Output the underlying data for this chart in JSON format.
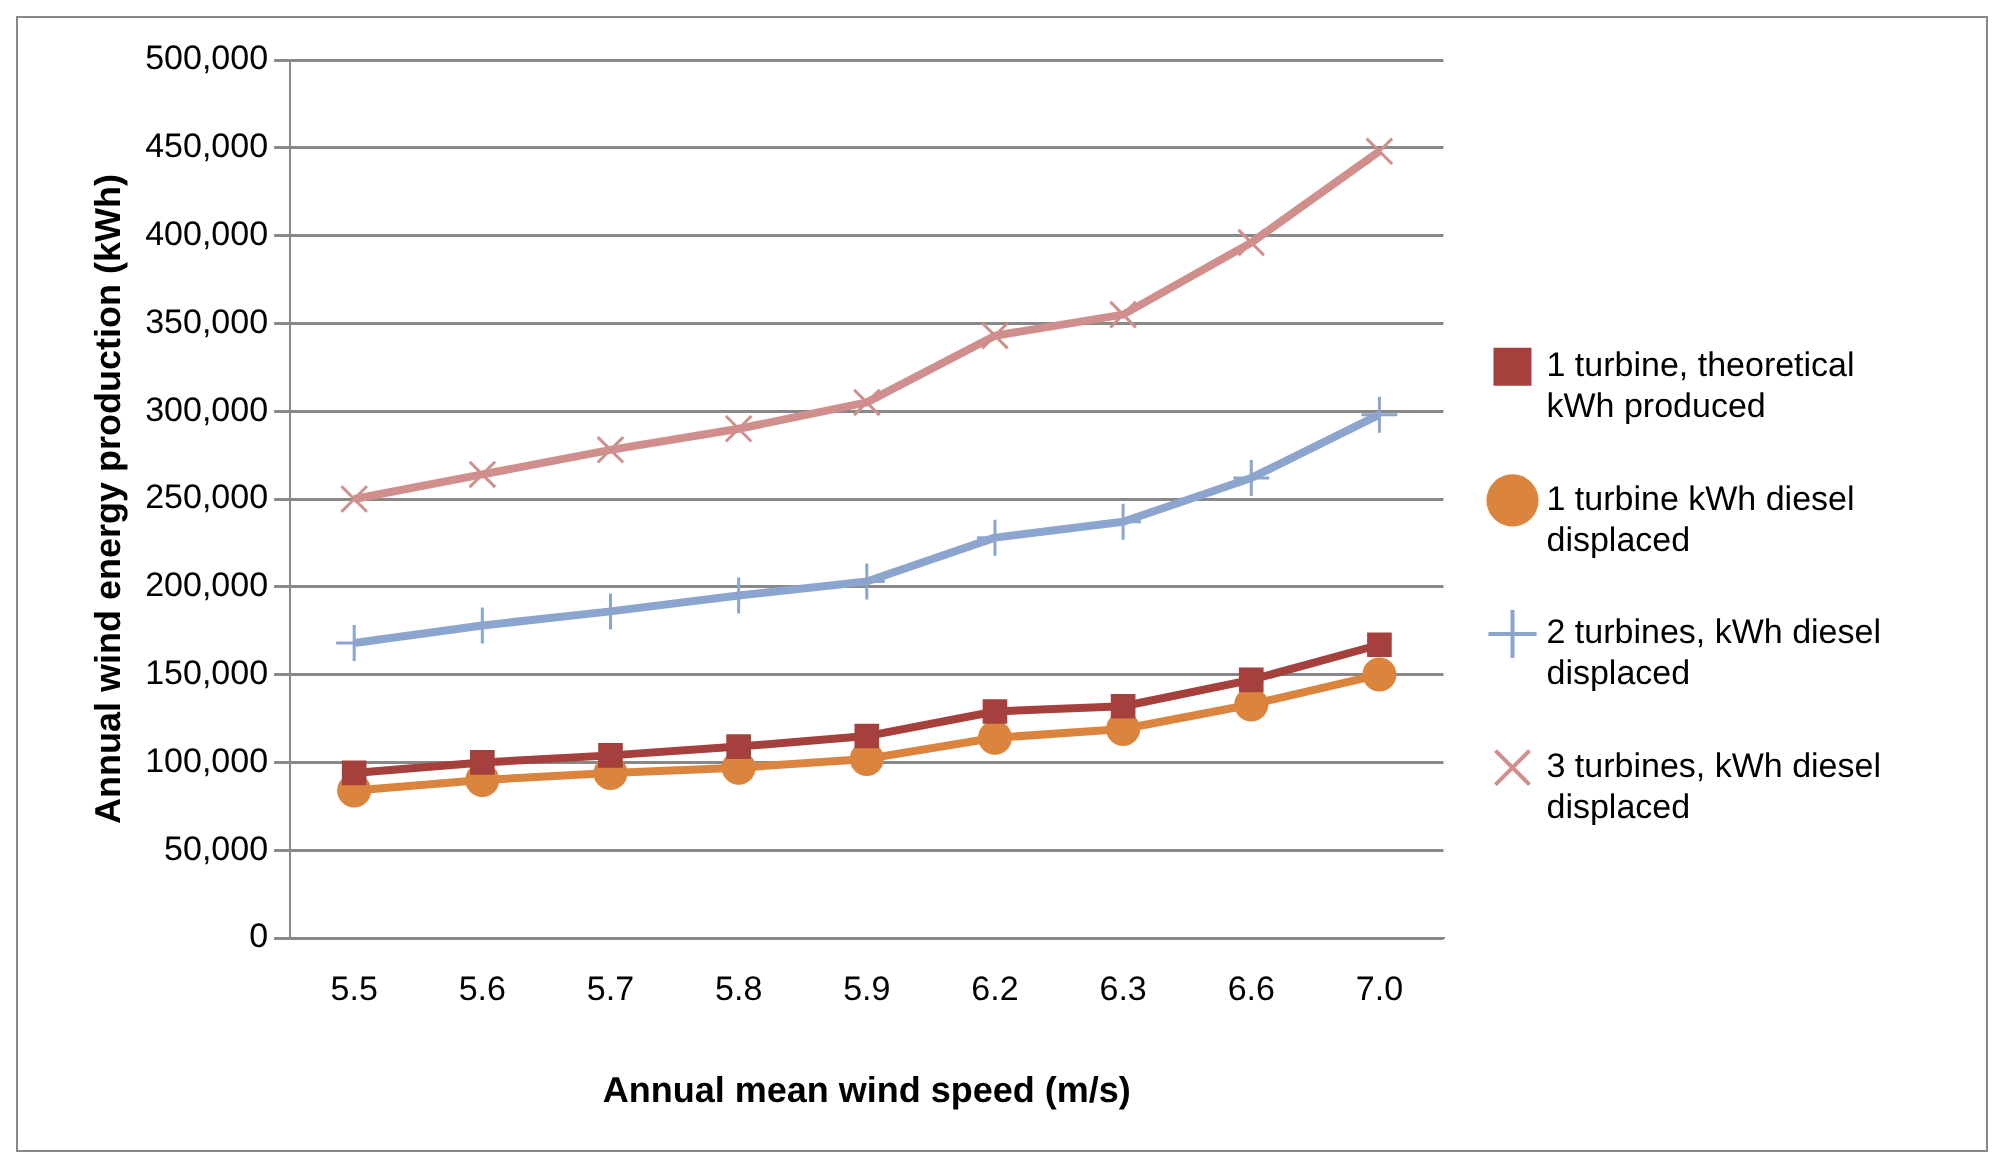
{
  "chart_data": {
    "type": "line",
    "xlabel": "Annual mean wind speed (m/s)",
    "ylabel": "Annual wind energy production (kWh)",
    "categories": [
      "5.5",
      "5.6",
      "5.7",
      "5.8",
      "5.9",
      "6.2",
      "6.3",
      "6.6",
      "7.0"
    ],
    "series": [
      {
        "name": "1 turbine, theoretical kWh produced",
        "color": "#a5403d",
        "marker": "square",
        "values": [
          94000,
          100000,
          104000,
          109000,
          115000,
          129000,
          132000,
          147000,
          167000
        ]
      },
      {
        "name": "1 turbine kWh diesel displaced",
        "color": "#db843d",
        "marker": "circle",
        "values": [
          84000,
          90000,
          94000,
          97000,
          102000,
          114000,
          119000,
          133000,
          150000
        ]
      },
      {
        "name": "2 turbines, kWh diesel displaced",
        "color": "#8ba5cf",
        "marker": "cross",
        "values": [
          168000,
          178000,
          186000,
          195000,
          203000,
          228000,
          237000,
          262000,
          298000
        ]
      },
      {
        "name": "3 turbines, kWh diesel displaced",
        "color": "#d08e8c",
        "marker": "crossRot",
        "values": [
          250000,
          264000,
          278000,
          290000,
          305000,
          343000,
          355000,
          396000,
          448000
        ]
      }
    ],
    "ylim": [
      0,
      500000
    ],
    "yticks": [
      0,
      {
        "value": 50000,
        "label": "50,000"
      },
      {
        "value": 100000,
        "label": "100,000"
      },
      {
        "value": 150000,
        "label": "150,000"
      },
      {
        "value": 200000,
        "label": "200,000"
      },
      {
        "value": 250000,
        "label": "250,000"
      },
      {
        "value": 300000,
        "label": "300,000"
      },
      {
        "value": 350000,
        "label": "350,000"
      },
      {
        "value": 400000,
        "label": "400,000"
      },
      {
        "value": 450000,
        "label": "450,000"
      },
      {
        "value": 500000,
        "label": "500,000"
      }
    ],
    "grid": "y",
    "legend": "right"
  }
}
